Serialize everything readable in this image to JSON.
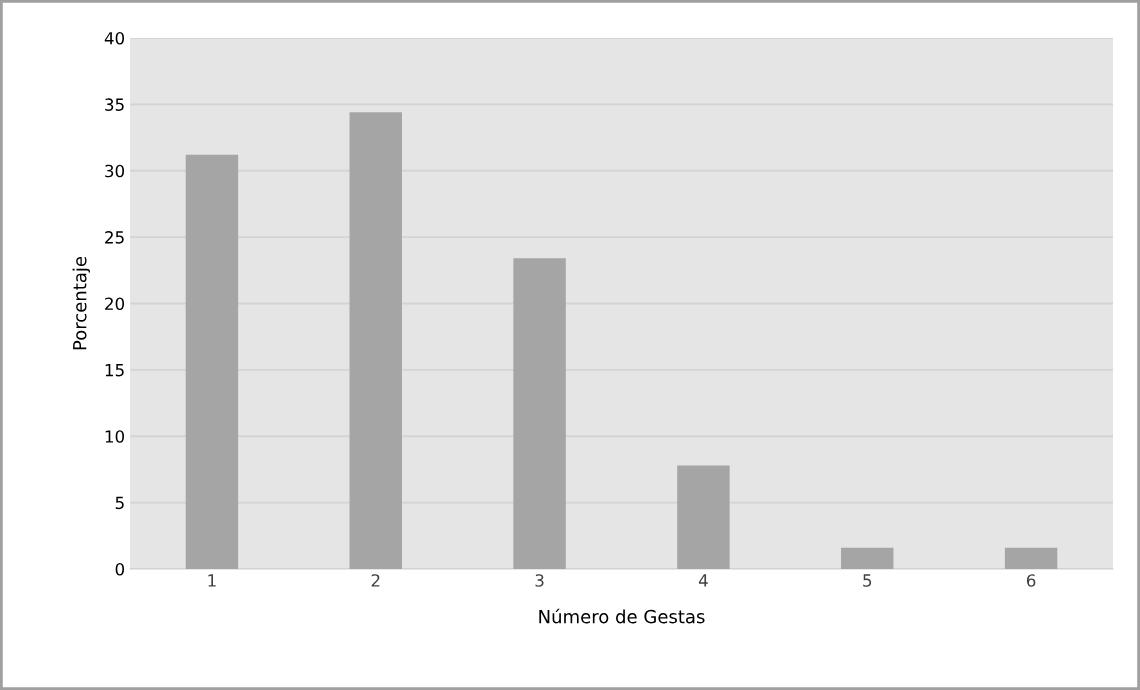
{
  "chart_data": {
    "type": "bar",
    "xlabel": "Número de Gestas",
    "ylabel": "Porcentaje",
    "categories": [
      "1",
      "2",
      "3",
      "4",
      "5",
      "6"
    ],
    "values": [
      31.2,
      34.4,
      23.4,
      7.8,
      1.6,
      1.6
    ],
    "color": "#a5a5a5",
    "ylim": [
      0,
      40
    ],
    "yticks": [
      0,
      5,
      10,
      15,
      20,
      25,
      30,
      35,
      40
    ],
    "grid": "y"
  }
}
